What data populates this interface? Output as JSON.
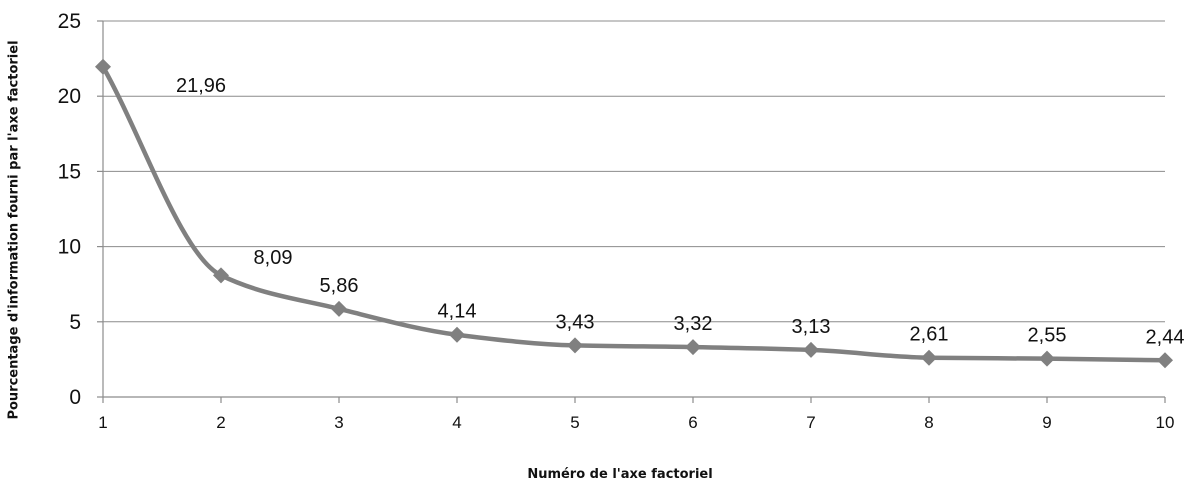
{
  "chart_data": {
    "type": "line",
    "x": [
      1,
      2,
      3,
      4,
      5,
      6,
      7,
      8,
      9,
      10
    ],
    "values": [
      21.96,
      8.09,
      5.86,
      4.14,
      3.43,
      3.32,
      3.13,
      2.61,
      2.55,
      2.44
    ],
    "data_labels": [
      "21,96",
      "8,09",
      "5,86",
      "4,14",
      "3,43",
      "3,32",
      "3,13",
      "2,61",
      "2,55",
      "2,44"
    ],
    "x_tick_labels": [
      "1",
      "2",
      "3",
      "4",
      "5",
      "6",
      "7",
      "8",
      "9",
      "10"
    ],
    "y_ticks": [
      0,
      5,
      10,
      15,
      20,
      25
    ],
    "y_tick_labels": [
      "0",
      "5",
      "10",
      "15",
      "20",
      "25"
    ],
    "ylim": [
      0,
      25
    ],
    "xlim": [
      1,
      10
    ],
    "xlabel": "Numéro de l'axe factoriel",
    "ylabel": "Pourcentage d'information fourni par l'axe factoriel",
    "grid": "horizontal",
    "line_style": "smooth",
    "marker": "diamond",
    "colors": {
      "line": "#808080",
      "marker": "#808080",
      "grid": "#8c8c8c",
      "axis": "#8c8c8c"
    }
  }
}
